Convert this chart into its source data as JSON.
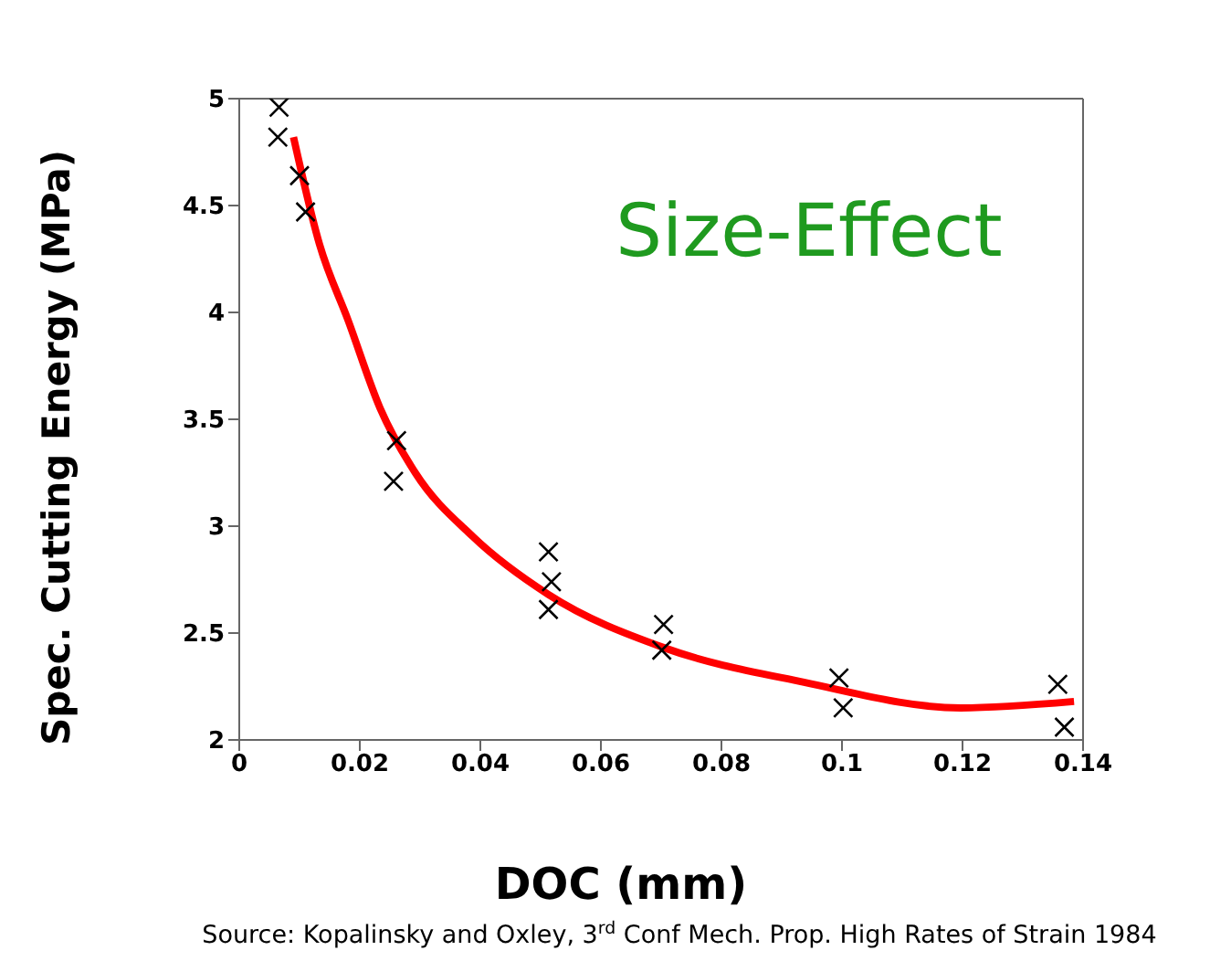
{
  "chart_data": {
    "type": "scatter",
    "xlabel": "DOC (mm)",
    "ylabel": "Spec. Cutting Energy (MPa)",
    "annotations": [
      "Size-Effect",
      "Source: Kopalinsky and Oxley, 3$^{rd}$ Conf Mech. Prop. High Rates of Strain 1984"
    ],
    "xlim": [
      0,
      0.14
    ],
    "xticks": [
      0,
      0.02,
      0.04,
      0.06,
      0.08,
      0.1,
      0.12,
      0.14
    ],
    "ylim": [
      2,
      5
    ],
    "yticks": [
      2,
      2.5,
      3,
      3.5,
      4,
      4.5,
      5
    ],
    "grid": false,
    "legend": false,
    "series": [
      {
        "color": "#000000",
        "marker": "cross",
        "x": [
          0.0066,
          0.0064,
          0.01,
          0.011,
          0.0261,
          0.0256,
          0.0513,
          0.0518,
          0.0513,
          0.0704,
          0.0701,
          0.0995,
          0.1002,
          0.1358,
          0.1369
        ],
        "values": [
          4.96,
          4.82,
          4.64,
          4.47,
          3.4,
          3.21,
          2.88,
          2.74,
          2.61,
          2.54,
          2.42,
          2.29,
          2.15,
          2.26,
          2.06
        ]
      },
      {
        "type": "line",
        "color": "#ff0000",
        "marker": "none",
        "line_style": "solid",
        "x": [
          0.009,
          0.0133,
          0.0181,
          0.0234,
          0.0292,
          0.0388,
          0.0513,
          0.0706,
          0.0937,
          0.1197,
          0.1385
        ],
        "values": [
          4.82,
          4.32,
          3.96,
          3.55,
          3.25,
          2.95,
          2.68,
          2.43,
          2.27,
          2.15,
          2.18
        ]
      }
    ]
  }
}
